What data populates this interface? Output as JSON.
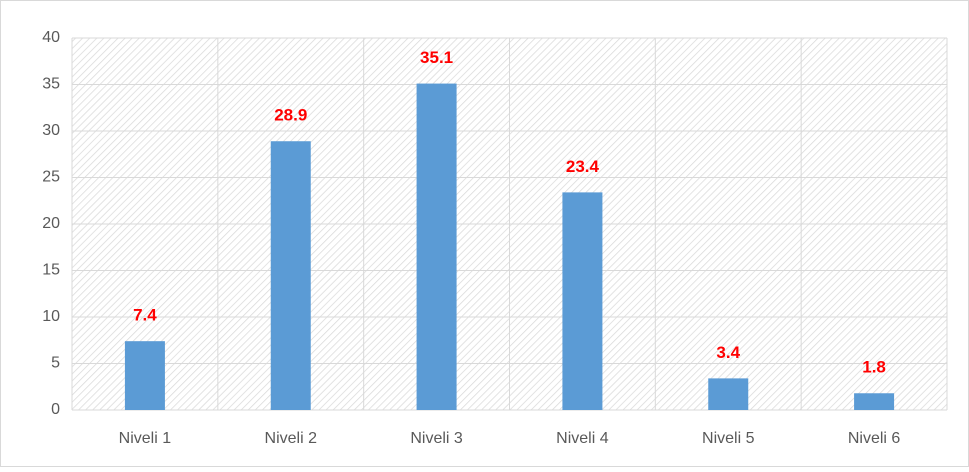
{
  "chart_data": {
    "type": "bar",
    "categories": [
      "Niveli 1",
      "Niveli 2",
      "Niveli 3",
      "Niveli 4",
      "Niveli 5",
      "Niveli 6"
    ],
    "values": [
      7.4,
      28.9,
      35.1,
      23.4,
      3.4,
      1.8
    ],
    "color": "#5b9bd5",
    "label_color": "#ff0000",
    "ylim": [
      0,
      40
    ],
    "yticks": [
      0,
      5,
      10,
      15,
      20,
      25,
      30,
      35,
      40
    ],
    "grid": true
  }
}
